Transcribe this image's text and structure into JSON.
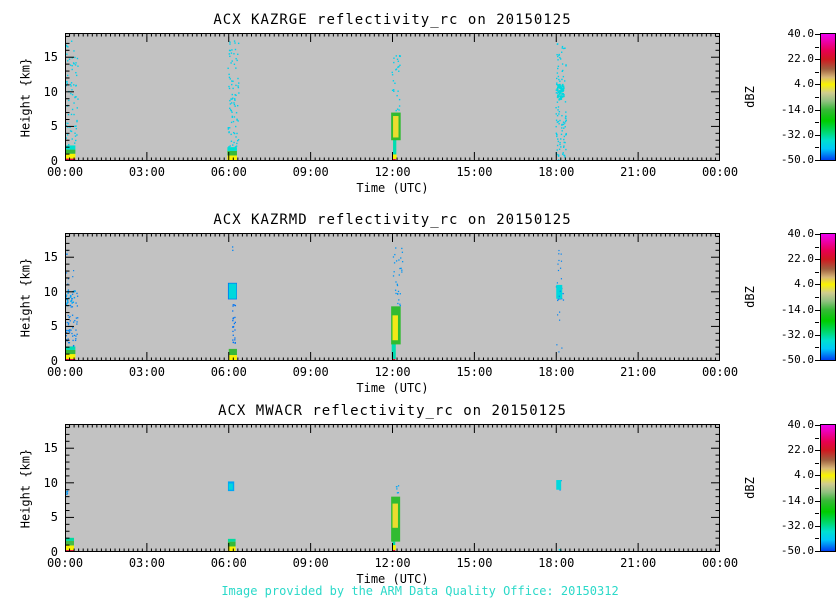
{
  "caption": {
    "text": "Image provided by the ARM Data Quality Office: 20150312",
    "color": "#2bd9c9"
  },
  "plot_bg_color": "#c2c2c2",
  "axis_color": "#000000",
  "colormap_stops": [
    {
      "dbz": -50,
      "color": "#0040f0"
    },
    {
      "dbz": -42,
      "color": "#00c8f8"
    },
    {
      "dbz": -36,
      "color": "#00e0d0"
    },
    {
      "dbz": -30,
      "color": "#00d870"
    },
    {
      "dbz": -22,
      "color": "#00cc00"
    },
    {
      "dbz": -14,
      "color": "#38b838"
    },
    {
      "dbz": -8,
      "color": "#90c080"
    },
    {
      "dbz": -2,
      "color": "#d0cc90"
    },
    {
      "dbz": 4,
      "color": "#f8f400"
    },
    {
      "dbz": 9,
      "color": "#d8b878"
    },
    {
      "dbz": 15,
      "color": "#a06040"
    },
    {
      "dbz": 22,
      "color": "#d01820"
    },
    {
      "dbz": 28,
      "color": "#e80050"
    },
    {
      "dbz": 40,
      "color": "#f000f0"
    }
  ],
  "chart_data": [
    {
      "type": "heatmap",
      "title": "ACX KAZRGE reflectivity_rc on 20150125",
      "xlabel": "Time (UTC)",
      "ylabel": "Height {km}",
      "x_ticks": [
        "00:00",
        "03:00",
        "06:00",
        "09:00",
        "12:00",
        "15:00",
        "18:00",
        "21:00",
        "00:00"
      ],
      "x_tick_hours": [
        0,
        3,
        6,
        9,
        12,
        15,
        18,
        21,
        24
      ],
      "y_ticks": [
        "0",
        "5",
        "10",
        "15"
      ],
      "y_tick_km": [
        0,
        5,
        10,
        15
      ],
      "xlim_hours": [
        0,
        24
      ],
      "ylim_km": [
        0,
        18.5
      ],
      "colorbar": {
        "label": "dBZ",
        "tick_labels": [
          "40.0",
          "22.0",
          "4.0",
          "-14.0",
          "-32.0",
          "-50.0"
        ],
        "tick_values": [
          40,
          22,
          4,
          -14,
          -32,
          -50
        ],
        "minor_tick_values": [
          31,
          13,
          -5,
          -23,
          -41
        ],
        "range": [
          -50,
          40
        ]
      },
      "features": [
        {
          "kind": "rect",
          "t": [
            0.0,
            0.38
          ],
          "h": [
            0.0,
            0.35
          ],
          "dbz": 26
        },
        {
          "kind": "rect",
          "t": [
            0.0,
            0.38
          ],
          "h": [
            0.35,
            1.05
          ],
          "dbz": 4
        },
        {
          "kind": "rect",
          "t": [
            0.0,
            0.38
          ],
          "h": [
            1.05,
            1.65
          ],
          "dbz": -14
        },
        {
          "kind": "rect",
          "t": [
            0.0,
            0.38
          ],
          "h": [
            1.65,
            2.25
          ],
          "dbz": -36
        },
        {
          "kind": "dots",
          "t": [
            0.0,
            0.45
          ],
          "h": [
            2.3,
            17.5
          ],
          "dbz": -40,
          "n": 70,
          "size": 1.4
        },
        {
          "kind": "rect",
          "t": [
            5.95,
            6.3
          ],
          "h": [
            0.0,
            0.8
          ],
          "dbz": 4
        },
        {
          "kind": "rect",
          "t": [
            5.95,
            6.3
          ],
          "h": [
            0.8,
            1.45
          ],
          "dbz": -14
        },
        {
          "kind": "rect",
          "t": [
            5.95,
            6.3
          ],
          "h": [
            1.45,
            2.0
          ],
          "dbz": -36
        },
        {
          "kind": "dots",
          "t": [
            5.95,
            6.35
          ],
          "h": [
            2.1,
            17.5
          ],
          "dbz": -40,
          "n": 85,
          "size": 1.4
        },
        {
          "kind": "rect",
          "t": [
            12.0,
            12.12
          ],
          "h": [
            0.0,
            0.3
          ],
          "dbz": 26
        },
        {
          "kind": "rect",
          "t": [
            12.0,
            12.15
          ],
          "h": [
            0.3,
            0.95
          ],
          "dbz": 4
        },
        {
          "kind": "rect",
          "t": [
            12.02,
            12.14
          ],
          "h": [
            0.95,
            3.1
          ],
          "dbz": -34
        },
        {
          "kind": "rect",
          "t": [
            11.95,
            12.3
          ],
          "h": [
            3.0,
            7.0
          ],
          "dbz": -15
        },
        {
          "kind": "rect",
          "t": [
            12.02,
            12.22
          ],
          "h": [
            3.4,
            6.5
          ],
          "dbz": 6
        },
        {
          "kind": "dots",
          "t": [
            11.95,
            12.3
          ],
          "h": [
            7.2,
            15.5
          ],
          "dbz": -40,
          "n": 28,
          "size": 1.4
        },
        {
          "kind": "dots",
          "t": [
            17.95,
            18.35
          ],
          "h": [
            0.0,
            17.3
          ],
          "dbz": -40,
          "n": 110,
          "size": 1.4
        },
        {
          "kind": "dots",
          "t": [
            18.0,
            18.25
          ],
          "h": [
            9.0,
            11.2
          ],
          "dbz": -38,
          "n": 45,
          "size": 1.8
        }
      ]
    },
    {
      "type": "heatmap",
      "title": "ACX KAZRMD reflectivity_rc on 20150125",
      "xlabel": "Time (UTC)",
      "ylabel": "Height {km}",
      "x_ticks": [
        "00:00",
        "03:00",
        "06:00",
        "09:00",
        "12:00",
        "15:00",
        "18:00",
        "21:00",
        "00:00"
      ],
      "x_tick_hours": [
        0,
        3,
        6,
        9,
        12,
        15,
        18,
        21,
        24
      ],
      "y_ticks": [
        "0",
        "5",
        "10",
        "15"
      ],
      "y_tick_km": [
        0,
        5,
        10,
        15
      ],
      "xlim_hours": [
        0,
        24
      ],
      "ylim_km": [
        0,
        18.5
      ],
      "colorbar": {
        "label": "dBZ",
        "tick_labels": [
          "40.0",
          "22.0",
          "4.0",
          "-14.0",
          "-32.0",
          "-50.0"
        ],
        "tick_values": [
          40,
          22,
          4,
          -14,
          -32,
          -50
        ],
        "minor_tick_values": [
          31,
          13,
          -5,
          -23,
          -41
        ],
        "range": [
          -50,
          40
        ]
      },
      "features": [
        {
          "kind": "rect",
          "t": [
            0.0,
            0.38
          ],
          "h": [
            0.0,
            0.3
          ],
          "dbz": 26
        },
        {
          "kind": "rect",
          "t": [
            0.0,
            0.38
          ],
          "h": [
            0.3,
            1.0
          ],
          "dbz": 4
        },
        {
          "kind": "rect",
          "t": [
            0.0,
            0.38
          ],
          "h": [
            1.0,
            1.6
          ],
          "dbz": -14
        },
        {
          "kind": "rect",
          "t": [
            0.0,
            0.38
          ],
          "h": [
            1.6,
            2.1
          ],
          "dbz": -34
        },
        {
          "kind": "dots",
          "t": [
            0.0,
            0.45
          ],
          "h": [
            2.2,
            10.5
          ],
          "dbz": -46,
          "n": 55,
          "size": 1.3
        },
        {
          "kind": "dots",
          "t": [
            0.0,
            0.35
          ],
          "h": [
            8.0,
            10.3
          ],
          "dbz": -44,
          "n": 25,
          "size": 1.5
        },
        {
          "kind": "dots",
          "t": [
            0.0,
            0.3
          ],
          "h": [
            11.0,
            16.5
          ],
          "dbz": -46,
          "n": 8,
          "size": 1.2
        },
        {
          "kind": "rect",
          "t": [
            5.97,
            6.3
          ],
          "h": [
            8.9,
            11.3
          ],
          "dbz": -47
        },
        {
          "kind": "rect",
          "t": [
            6.0,
            6.28
          ],
          "h": [
            9.0,
            11.2
          ],
          "dbz": -38
        },
        {
          "kind": "dots",
          "t": [
            6.12,
            6.22
          ],
          "h": [
            2.6,
            8.7
          ],
          "dbz": -47,
          "n": 26,
          "size": 1.3
        },
        {
          "kind": "rect",
          "t": [
            6.0,
            6.3
          ],
          "h": [
            0.85,
            1.75
          ],
          "dbz": -14
        },
        {
          "kind": "rect",
          "t": [
            6.0,
            6.3
          ],
          "h": [
            0.0,
            0.85
          ],
          "dbz": 4
        },
        {
          "kind": "dots",
          "t": [
            6.1,
            6.2
          ],
          "h": [
            16.0,
            16.6
          ],
          "dbz": -46,
          "n": 2,
          "size": 1.3
        },
        {
          "kind": "rect",
          "t": [
            11.98,
            12.1
          ],
          "h": [
            0.0,
            0.3
          ],
          "dbz": 24
        },
        {
          "kind": "rect",
          "t": [
            11.97,
            12.12
          ],
          "h": [
            0.3,
            2.5
          ],
          "dbz": -34
        },
        {
          "kind": "rect",
          "t": [
            11.95,
            12.3
          ],
          "h": [
            2.4,
            7.9
          ],
          "dbz": -15
        },
        {
          "kind": "rect",
          "t": [
            12.0,
            12.2
          ],
          "h": [
            3.0,
            6.6
          ],
          "dbz": 5
        },
        {
          "kind": "dots",
          "t": [
            11.95,
            12.35
          ],
          "h": [
            8.0,
            16.5
          ],
          "dbz": -45,
          "n": 30,
          "size": 1.3
        },
        {
          "kind": "dots",
          "t": [
            17.98,
            18.25
          ],
          "h": [
            8.8,
            11.2
          ],
          "dbz": -46,
          "n": 12,
          "size": 1.3
        },
        {
          "kind": "rect",
          "t": [
            18.0,
            18.22
          ],
          "h": [
            9.0,
            11.0
          ],
          "dbz": -38
        },
        {
          "kind": "dots",
          "t": [
            18.0,
            18.2
          ],
          "h": [
            0.5,
            16.2
          ],
          "dbz": -46,
          "n": 18,
          "size": 1.2
        }
      ]
    },
    {
      "type": "heatmap",
      "title": "ACX MWACR reflectivity_rc on 20150125",
      "xlabel": "Time (UTC)",
      "ylabel": "Height {km}",
      "x_ticks": [
        "00:00",
        "03:00",
        "06:00",
        "09:00",
        "12:00",
        "15:00",
        "18:00",
        "21:00",
        "00:00"
      ],
      "x_tick_hours": [
        0,
        3,
        6,
        9,
        12,
        15,
        18,
        21,
        24
      ],
      "y_ticks": [
        "0",
        "5",
        "10",
        "15"
      ],
      "y_tick_km": [
        0,
        5,
        10,
        15
      ],
      "xlim_hours": [
        0,
        24
      ],
      "ylim_km": [
        0,
        18.5
      ],
      "colorbar": {
        "label": "dBZ",
        "tick_labels": [
          "40.0",
          "22.0",
          "4.0",
          "-14.0",
          "-32.0",
          "-50.0"
        ],
        "tick_values": [
          40,
          22,
          4,
          -14,
          -32,
          -50
        ],
        "minor_tick_values": [
          31,
          13,
          -5,
          -23,
          -41
        ],
        "range": [
          -50,
          40
        ]
      },
      "features": [
        {
          "kind": "rect",
          "t": [
            0.0,
            0.33
          ],
          "h": [
            0.0,
            0.28
          ],
          "dbz": 25
        },
        {
          "kind": "rect",
          "t": [
            0.0,
            0.33
          ],
          "h": [
            0.28,
            0.95
          ],
          "dbz": 4
        },
        {
          "kind": "rect",
          "t": [
            0.0,
            0.33
          ],
          "h": [
            0.95,
            1.6
          ],
          "dbz": -13
        },
        {
          "kind": "rect",
          "t": [
            0.0,
            0.33
          ],
          "h": [
            1.6,
            2.05
          ],
          "dbz": -33
        },
        {
          "kind": "dots",
          "t": [
            0.0,
            0.15
          ],
          "h": [
            8.3,
            9.0
          ],
          "dbz": -45,
          "n": 4,
          "size": 1.4
        },
        {
          "kind": "rect",
          "t": [
            5.97,
            6.2
          ],
          "h": [
            8.8,
            10.2
          ],
          "dbz": -44
        },
        {
          "kind": "rect",
          "t": [
            6.0,
            6.15
          ],
          "h": [
            9.0,
            9.9
          ],
          "dbz": -38
        },
        {
          "kind": "rect",
          "t": [
            5.97,
            6.25
          ],
          "h": [
            0.0,
            0.8
          ],
          "dbz": 4
        },
        {
          "kind": "rect",
          "t": [
            5.97,
            6.25
          ],
          "h": [
            0.8,
            1.5
          ],
          "dbz": -14
        },
        {
          "kind": "rect",
          "t": [
            5.97,
            6.25
          ],
          "h": [
            1.5,
            1.9
          ],
          "dbz": -33
        },
        {
          "kind": "rect",
          "t": [
            12.0,
            12.1
          ],
          "h": [
            0.0,
            0.3
          ],
          "dbz": 24
        },
        {
          "kind": "rect",
          "t": [
            11.98,
            12.12
          ],
          "h": [
            0.3,
            1.0
          ],
          "dbz": 4
        },
        {
          "kind": "rect",
          "t": [
            12.0,
            12.1
          ],
          "h": [
            1.0,
            1.5
          ],
          "dbz": -33
        },
        {
          "kind": "rect",
          "t": [
            11.95,
            12.28
          ],
          "h": [
            1.5,
            8.0
          ],
          "dbz": -15
        },
        {
          "kind": "rect",
          "t": [
            12.0,
            12.2
          ],
          "h": [
            3.5,
            7.0
          ],
          "dbz": 6
        },
        {
          "kind": "dots",
          "t": [
            12.0,
            12.2
          ],
          "h": [
            8.2,
            10.0
          ],
          "dbz": -44,
          "n": 6,
          "size": 1.3
        },
        {
          "kind": "dots",
          "t": [
            17.98,
            18.2
          ],
          "h": [
            8.9,
            10.5
          ],
          "dbz": -46,
          "n": 6,
          "size": 1.2
        },
        {
          "kind": "rect",
          "t": [
            18.0,
            18.18
          ],
          "h": [
            9.0,
            10.4
          ],
          "dbz": -38
        },
        {
          "kind": "dots",
          "t": [
            18.0,
            18.15
          ],
          "h": [
            0.2,
            0.5
          ],
          "dbz": -38,
          "n": 3,
          "size": 1.3
        }
      ]
    }
  ]
}
